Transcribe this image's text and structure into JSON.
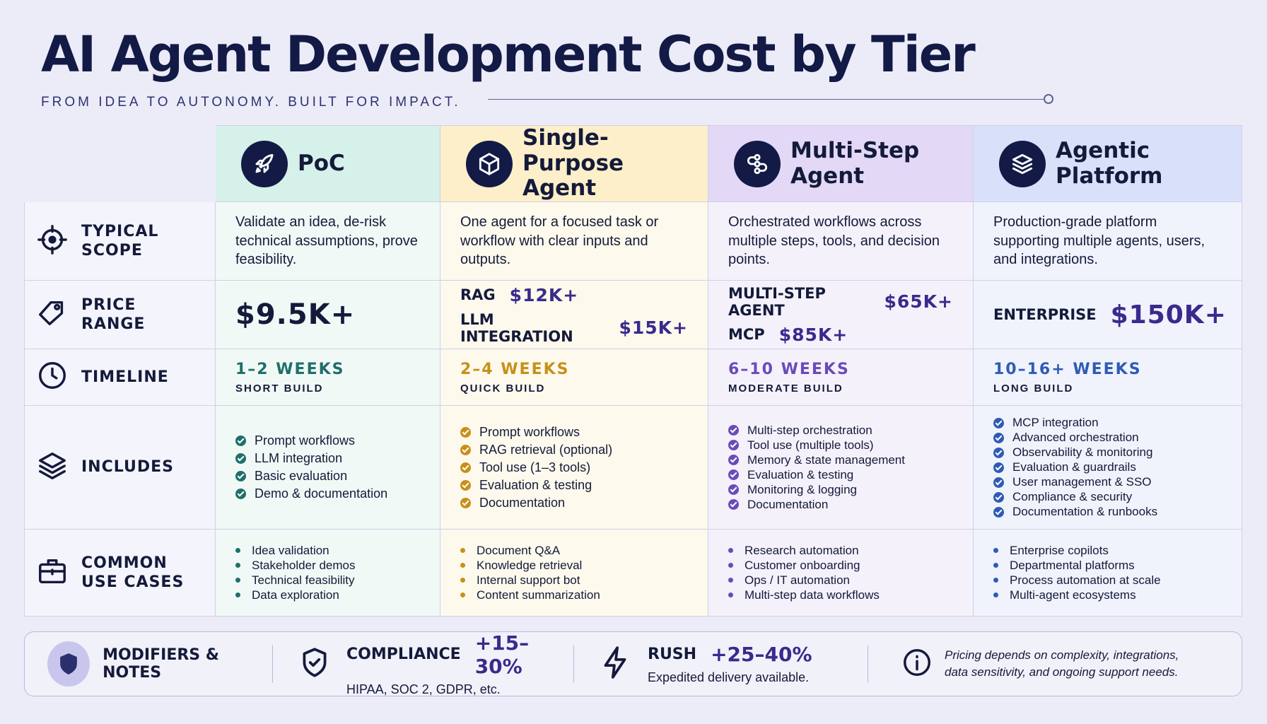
{
  "header": {
    "title": "AI Agent Development Cost by Tier",
    "subtitle": "FROM IDEA TO AUTONOMY.  BUILT FOR IMPACT."
  },
  "table": {
    "row_labels": [
      "TYPICAL SCOPE",
      "PRICE RANGE",
      "TIMELINE",
      "INCLUDES",
      "COMMON USE CASES"
    ],
    "tiers": [
      {
        "name": "PoC",
        "color": "#1f6f6a",
        "head": "#d6f0ea",
        "tint": "#f1f9f6",
        "scope": "Validate an idea, de-risk technical assumptions, prove feasibility.",
        "prices": [
          {
            "value": "$9.5K+"
          }
        ],
        "timeline": "1–2 WEEKS",
        "build": "SHORT BUILD",
        "includes": [
          "Prompt workflows",
          "LLM integration",
          "Basic evaluation",
          "Demo & documentation"
        ],
        "use_cases": [
          "Idea validation",
          "Stakeholder demos",
          "Technical feasibility",
          "Data exploration"
        ]
      },
      {
        "name": "Single-Purpose Agent",
        "color": "#c8901a",
        "head": "#fcefc9",
        "tint": "#fdf9ec",
        "scope": "One agent for a focused task or workflow with clear inputs and outputs.",
        "prices": [
          {
            "label": "RAG",
            "value": "$12K+"
          },
          {
            "label": "LLM INTEGRATION",
            "value": "$15K+"
          }
        ],
        "timeline": "2–4 WEEKS",
        "build": "QUICK BUILD",
        "includes": [
          "Prompt workflows",
          "RAG retrieval (optional)",
          "Tool use (1–3 tools)",
          "Evaluation & testing",
          "Documentation"
        ],
        "use_cases": [
          "Document Q&A",
          "Knowledge retrieval",
          "Internal support bot",
          "Content summarization"
        ]
      },
      {
        "name": "Multi-Step Agent",
        "color": "#6a4bb8",
        "head": "#e3d9f6",
        "tint": "#f5f1fb",
        "scope": "Orchestrated workflows across multiple steps, tools, and decision points.",
        "prices": [
          {
            "label": "MULTI-STEP AGENT",
            "value": "$65K+"
          },
          {
            "label": "MCP",
            "value": "$85K+"
          }
        ],
        "timeline": "6–10 WEEKS",
        "build": "MODERATE BUILD",
        "includes": [
          "Multi-step orchestration",
          "Tool use (multiple tools)",
          "Memory & state management",
          "Evaluation & testing",
          "Monitoring & logging",
          "Documentation"
        ],
        "use_cases": [
          "Research automation",
          "Customer onboarding",
          "Ops / IT automation",
          "Multi-step data workflows"
        ]
      },
      {
        "name": "Agentic Platform",
        "color": "#2f5bb5",
        "head": "#d9e1fa",
        "tint": "#f0f3fc",
        "scope": "Production-grade platform supporting multiple agents, users, and integrations.",
        "prices": [
          {
            "label": "ENTERPRISE",
            "value": "$150K+"
          }
        ],
        "timeline": "10–16+ WEEKS",
        "build": "LONG BUILD",
        "includes": [
          "MCP integration",
          "Advanced orchestration",
          "Observability & monitoring",
          "Evaluation & guardrails",
          "User management & SSO",
          "Compliance & security",
          "Documentation & runbooks"
        ],
        "use_cases": [
          "Enterprise copilots",
          "Departmental platforms",
          "Process automation at scale",
          "Multi-agent ecosystems"
        ]
      }
    ]
  },
  "footer": {
    "title": "MODIFIERS & NOTES",
    "items": [
      {
        "label": "COMPLIANCE",
        "value": "+15–30%",
        "note": "HIPAA, SOC 2, GDPR, etc."
      },
      {
        "label": "RUSH",
        "value": "+25–40%",
        "note": "Expedited delivery available."
      }
    ],
    "note": "Pricing depends on complexity, integrations, data sensitivity, and ongoing support needs."
  }
}
